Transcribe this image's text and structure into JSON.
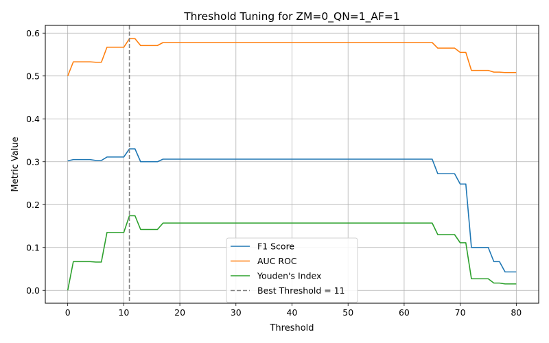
{
  "chart_data": {
    "type": "line",
    "title": "Threshold Tuning for ZM=0_QN=1_AF=1",
    "xlabel": "Threshold",
    "ylabel": "Metric Value",
    "xlim": [
      -4,
      84
    ],
    "ylim": [
      -0.03,
      0.618
    ],
    "xticks": [
      0,
      10,
      20,
      30,
      40,
      50,
      60,
      70,
      80
    ],
    "yticks": [
      0.0,
      0.1,
      0.2,
      0.3,
      0.4,
      0.5,
      0.6
    ],
    "xtick_labels": [
      "0",
      "10",
      "20",
      "30",
      "40",
      "50",
      "60",
      "70",
      "80"
    ],
    "ytick_labels": [
      "0.0",
      "0.1",
      "0.2",
      "0.3",
      "0.4",
      "0.5",
      "0.6"
    ],
    "grid": true,
    "legend_position": "lower center",
    "series": [
      {
        "name": "F1 Score",
        "color": "#1f77b4",
        "x": [
          0,
          1,
          2,
          3,
          4,
          5,
          6,
          7,
          8,
          9,
          10,
          11,
          12,
          13,
          14,
          15,
          16,
          17,
          18,
          19,
          20,
          30,
          40,
          50,
          60,
          65,
          66,
          67,
          68,
          69,
          70,
          71,
          72,
          73,
          74,
          75,
          76,
          77,
          78,
          79,
          80
        ],
        "y": [
          0.302,
          0.305,
          0.305,
          0.305,
          0.305,
          0.303,
          0.303,
          0.311,
          0.311,
          0.311,
          0.311,
          0.33,
          0.33,
          0.3,
          0.3,
          0.3,
          0.3,
          0.306,
          0.306,
          0.306,
          0.306,
          0.306,
          0.306,
          0.306,
          0.306,
          0.306,
          0.272,
          0.272,
          0.272,
          0.272,
          0.248,
          0.248,
          0.1,
          0.1,
          0.1,
          0.1,
          0.067,
          0.067,
          0.043,
          0.043,
          0.043
        ]
      },
      {
        "name": "AUC ROC",
        "color": "#ff7f0e",
        "x": [
          0,
          1,
          2,
          3,
          4,
          5,
          6,
          7,
          8,
          9,
          10,
          11,
          12,
          13,
          14,
          15,
          16,
          17,
          18,
          19,
          20,
          30,
          40,
          50,
          60,
          65,
          66,
          67,
          68,
          69,
          70,
          71,
          72,
          73,
          74,
          75,
          76,
          77,
          78,
          79,
          80
        ],
        "y": [
          0.5,
          0.533,
          0.533,
          0.533,
          0.533,
          0.532,
          0.532,
          0.567,
          0.567,
          0.567,
          0.567,
          0.587,
          0.587,
          0.571,
          0.571,
          0.571,
          0.571,
          0.578,
          0.578,
          0.578,
          0.578,
          0.578,
          0.578,
          0.578,
          0.578,
          0.578,
          0.565,
          0.565,
          0.565,
          0.565,
          0.555,
          0.555,
          0.513,
          0.513,
          0.513,
          0.513,
          0.509,
          0.509,
          0.508,
          0.508,
          0.508
        ]
      },
      {
        "name": "Youden's Index",
        "color": "#2ca02c",
        "x": [
          0,
          1,
          2,
          3,
          4,
          5,
          6,
          7,
          8,
          9,
          10,
          11,
          12,
          13,
          14,
          15,
          16,
          17,
          18,
          19,
          20,
          30,
          40,
          50,
          60,
          65,
          66,
          67,
          68,
          69,
          70,
          71,
          72,
          73,
          74,
          75,
          76,
          77,
          78,
          79,
          80
        ],
        "y": [
          0.0,
          0.067,
          0.067,
          0.067,
          0.067,
          0.066,
          0.066,
          0.135,
          0.135,
          0.135,
          0.135,
          0.174,
          0.174,
          0.142,
          0.142,
          0.142,
          0.142,
          0.157,
          0.157,
          0.157,
          0.157,
          0.157,
          0.157,
          0.157,
          0.157,
          0.157,
          0.13,
          0.13,
          0.13,
          0.13,
          0.111,
          0.111,
          0.027,
          0.027,
          0.027,
          0.027,
          0.017,
          0.017,
          0.015,
          0.015,
          0.015
        ]
      }
    ],
    "vline": {
      "name": "Best Threshold = 11",
      "x": 11,
      "color": "#808080",
      "style": "dashed"
    }
  }
}
